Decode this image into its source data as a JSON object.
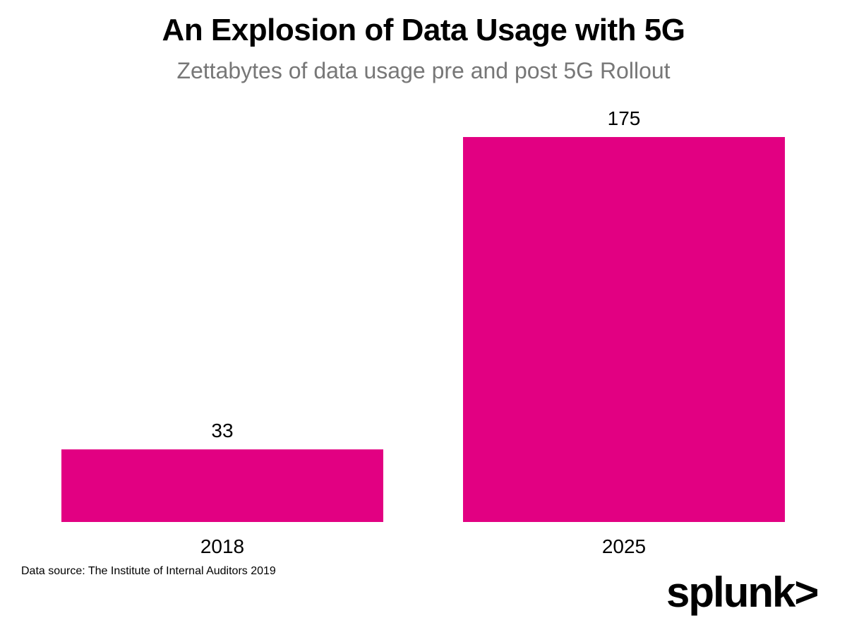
{
  "chart_data": {
    "type": "bar",
    "title": "An Explosion of Data Usage with 5G",
    "subtitle": "Zettabytes of data usage pre and post 5G Rollout",
    "categories": [
      "2018",
      "2025"
    ],
    "values": [
      33,
      175
    ],
    "data_labels": [
      "33",
      "175"
    ],
    "ylim": [
      0,
      175
    ],
    "grid": false,
    "bar_color": "#E20082"
  },
  "footer": {
    "source": "Data source: The Institute of Internal Auditors 2019",
    "logo": "splunk>"
  }
}
